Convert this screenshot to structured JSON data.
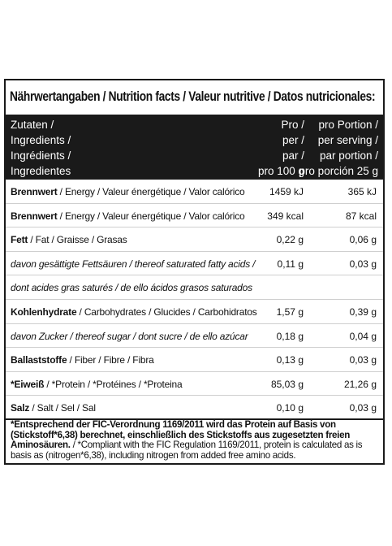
{
  "title": "Nährwertangaben / Nutrition facts / Valeur nutritive / Datos nutricionales:",
  "header": {
    "col1": [
      "Zutaten /",
      "Ingredients /",
      "Ingrédients /",
      "Ingredientes"
    ],
    "col2": [
      "Pro /",
      "per /",
      "par /",
      "pro 100 g"
    ],
    "col3": [
      "pro Portion /",
      "per serving /",
      "par portion /",
      "pro porción 25 g"
    ]
  },
  "rows": [
    {
      "bold": "Brennwert",
      "rest": " / Energy / Valeur énergétique / Valor calórico",
      "v1": "1459 kJ",
      "v2": "365 kJ"
    },
    {
      "bold": "Brennwert",
      "rest": " / Energy / Valeur énergétique / Valor calórico",
      "v1": "349 kcal",
      "v2": "87 kcal"
    },
    {
      "bold": "Fett",
      "rest": " / Fat / Graisse / Grasas",
      "v1": "0,22 g",
      "v2": "0,06 g"
    },
    {
      "bold": "",
      "rest": "davon gesättigte Fettsäuren / thereof saturated fatty acids /",
      "v1": "0,11 g",
      "v2": "0,03 g"
    },
    {
      "bold": "",
      "rest": "dont acides gras saturés / de ello ácidos grasos saturados",
      "v1": "",
      "v2": ""
    },
    {
      "bold": "Kohlenhydrate",
      "rest": " / Carbohydrates / Glucides / Carbohidratos",
      "v1": "1,57 g",
      "v2": "0,39 g"
    },
    {
      "bold": "",
      "rest": "davon Zucker / thereof sugar / dont sucre / de ello azúcar",
      "v1": "0,18 g",
      "v2": "0,04 g"
    },
    {
      "bold": "Ballaststoffe",
      "rest": " / Fiber / Fibre / Fibra",
      "v1": "0,13 g",
      "v2": "0,03 g"
    },
    {
      "bold": "*Eiweiß",
      "rest": " / *Protein / *Protéines / *Proteina",
      "v1": "85,03 g",
      "v2": "21,26 g"
    },
    {
      "bold": "Salz",
      "rest": " / Salt / Sel / Sal",
      "v1": "0,10 g",
      "v2": "0,03 g"
    }
  ],
  "footnote": {
    "bold": "*Entsprechend der FIC-Verordnung 1169/2011 wird das Protein auf Basis von (Stickstoff*6,38) berechnet, einschließlich des Stickstoffs aus zugesetzten freien Aminosäuren.",
    "rest": " / *Compliant with the FIC Regulation 1169/2011, protein is calculated as is basis as (nitrogen*6,38), including nitrogen from added free amino acids."
  }
}
